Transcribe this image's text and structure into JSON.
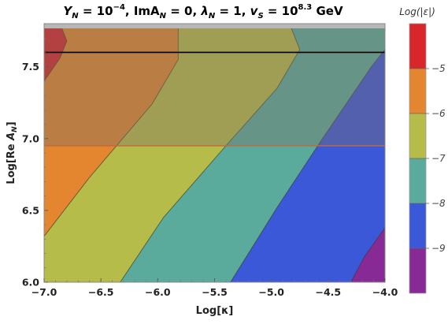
{
  "chart_data": {
    "type": "contour",
    "title": "Y_N = 10^-4, ImA_N = 0, λ_N = 1, v_S = 10^8.3 GeV",
    "title_parts": {
      "y": "Y",
      "y_sub": "N",
      "y_eq": " = 10",
      "y_exp": "−4",
      "im": ", ImA",
      "im_sub": "N",
      "im_eq": " = 0, ",
      "lam": "λ",
      "lam_sub": "N",
      "lam_eq": " = 1, ",
      "v": "v",
      "v_sub": "S",
      "v_eq": " = 10",
      "v_exp": "8.3",
      "unit": " GeV"
    },
    "xlabel": "Log[κ]",
    "ylabel": "Log[Re A_N]",
    "ylabel_parts": {
      "pre": "Log[Re ",
      "sym": "A",
      "sub": "N",
      "post": "]"
    },
    "xlim": [
      -7.0,
      -4.0
    ],
    "ylim": [
      6.0,
      7.8
    ],
    "xticks": [
      -7.0,
      -6.5,
      -6.0,
      -5.5,
      -5.0,
      -4.5,
      -4.0
    ],
    "xtick_labels": [
      "−7.0",
      "−6.5",
      "−6.0",
      "−5.5",
      "−5.0",
      "−4.5",
      "−4.0"
    ],
    "yticks": [
      6.0,
      6.5,
      7.0,
      7.5
    ],
    "ytick_labels": [
      "6.0",
      "6.5",
      "7.0",
      "7.5"
    ],
    "contour_levels": [
      -9,
      -8,
      -7,
      -6,
      -5
    ],
    "levels": [
      {
        "range": [
          -10,
          -9
        ],
        "color": "#882a96"
      },
      {
        "range": [
          -9,
          -8
        ],
        "color": "#3b58d8"
      },
      {
        "range": [
          -8,
          -7
        ],
        "color": "#5bab9c"
      },
      {
        "range": [
          -7,
          -6
        ],
        "color": "#b6bc49"
      },
      {
        "range": [
          -6,
          -5
        ],
        "color": "#e3862f"
      },
      {
        "range": [
          -5,
          -4
        ],
        "color": "#d8262a"
      }
    ],
    "contour_lines": [
      {
        "level": -9,
        "points": [
          [
            -4.3,
            6.0
          ],
          [
            -4.18,
            6.18
          ],
          [
            -4.0,
            6.38
          ]
        ]
      },
      {
        "level": -8,
        "points": [
          [
            -5.36,
            6.0
          ],
          [
            -4.95,
            6.52
          ],
          [
            -4.55,
            7.0
          ],
          [
            -4.12,
            7.5
          ],
          [
            -4.0,
            7.62
          ]
        ]
      },
      {
        "level": -7,
        "points": [
          [
            -6.33,
            6.0
          ],
          [
            -5.95,
            6.45
          ],
          [
            -5.4,
            6.95
          ],
          [
            -4.95,
            7.35
          ],
          [
            -4.75,
            7.62
          ],
          [
            -4.84,
            7.8
          ]
        ]
      },
      {
        "level": -6,
        "points": [
          [
            -7.0,
            6.32
          ],
          [
            -6.6,
            6.73
          ],
          [
            -6.05,
            7.24
          ],
          [
            -5.82,
            7.55
          ],
          [
            -5.82,
            7.8
          ]
        ]
      },
      {
        "level": -5,
        "points": [
          [
            -7.0,
            7.4
          ],
          [
            -6.86,
            7.56
          ],
          [
            -6.8,
            7.68
          ],
          [
            -6.86,
            7.8
          ]
        ]
      }
    ],
    "excluded_band": {
      "ylim": [
        6.95,
        7.8
      ],
      "color": "#7a6f66",
      "alpha": 0.38
    },
    "top_gray_band": {
      "ylim": [
        7.79,
        7.8
      ],
      "color": "#b7b7b7"
    },
    "horizontal_lines": [
      {
        "y": 7.6,
        "color": "#000000"
      },
      {
        "y": 6.95,
        "color": "#c06a3a"
      }
    ],
    "colorbar": {
      "title": "Log(|ε|)",
      "title_parts": {
        "pre": "Log(|",
        "sym": "ε",
        "post": "|)"
      },
      "ticks": [
        -9,
        -8,
        -7,
        -6,
        -5
      ],
      "tick_labels": [
        "−9",
        "−8",
        "−7",
        "−6",
        "−5"
      ],
      "range": [
        -10,
        -4
      ],
      "placement": "right"
    },
    "grid": false
  }
}
